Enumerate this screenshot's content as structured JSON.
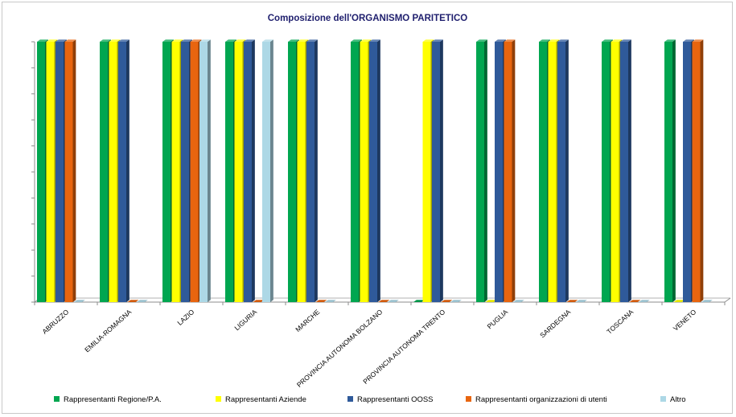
{
  "chart_data": {
    "type": "bar",
    "title": "Composizione dell'ORGANISMO PARITETICO",
    "xlabel": "",
    "ylabel": "",
    "ylim": [
      0,
      1
    ],
    "grid": false,
    "legend_position": "bottom",
    "categories": [
      "ABRUZZO",
      "EMILIA-ROMAGNA",
      "LAZIO",
      "LIGURIA",
      "MARCHE",
      "PROVINCIA AUTONOMA BOLZANO",
      "PROVINCIA AUTONOMA TRENTO",
      "PUGLIA",
      "SARDEGNA",
      "TOSCANA",
      "VENETO"
    ],
    "series": [
      {
        "name": "Rappresentanti Regione/P.A.",
        "color": "#00a650",
        "values": [
          1,
          1,
          1,
          1,
          1,
          1,
          0,
          1,
          1,
          1,
          1
        ]
      },
      {
        "name": "Rappresentanti Aziende",
        "color": "#ffff00",
        "values": [
          1,
          1,
          1,
          1,
          1,
          1,
          1,
          0,
          1,
          1,
          0
        ]
      },
      {
        "name": "Rappresentanti OOSS",
        "color": "#2f5a9a",
        "values": [
          1,
          1,
          1,
          1,
          1,
          1,
          1,
          1,
          1,
          1,
          1
        ]
      },
      {
        "name": "Rappresentanti organizzazioni di utenti",
        "color": "#e8650f",
        "values": [
          1,
          0,
          1,
          0,
          0,
          0,
          0,
          1,
          0,
          0,
          1
        ]
      },
      {
        "name": "Altro",
        "color": "#add8e6",
        "values": [
          0,
          0,
          1,
          1,
          0,
          0,
          0,
          0,
          0,
          0,
          0
        ]
      }
    ]
  }
}
